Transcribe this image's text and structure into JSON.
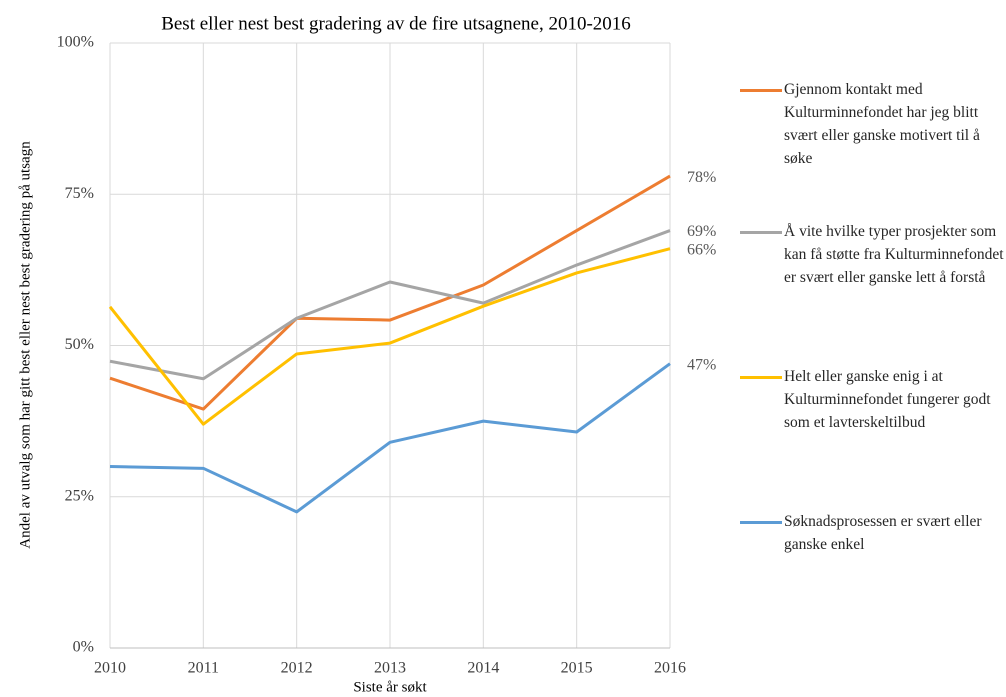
{
  "chart_data": {
    "type": "line",
    "title": "Best eller nest best gradering av de fire utsagnene, 2010-2016",
    "xlabel": "Siste år søkt",
    "ylabel": "Andel av utvalg som har gitt best eller nest best gradering på utsagn",
    "categories": [
      "2010",
      "2011",
      "2012",
      "2013",
      "2014",
      "2015",
      "2016"
    ],
    "ylim": [
      0,
      100
    ],
    "yticks": [
      {
        "value": 0,
        "label": "0%"
      },
      {
        "value": 25,
        "label": "25%"
      },
      {
        "value": 50,
        "label": "50%"
      },
      {
        "value": 75,
        "label": "75%"
      },
      {
        "value": 100,
        "label": "100%"
      }
    ],
    "grid": true,
    "legend": "right",
    "series": [
      {
        "name": "Gjennom kontakt med Kulturminnefondet har jeg blitt svært eller ganske motivert til å søke",
        "color": "#ed7d31",
        "values": [
          44.6,
          39.5,
          54.5,
          54.2,
          60,
          69,
          78
        ],
        "value_labels": [
          null,
          null,
          null,
          null,
          null,
          null,
          "78%"
        ]
      },
      {
        "name": "Å vite hvilke typer prosjekter som kan få støtte fra Kulturminnefondet er svært eller ganske lett å forstå",
        "color": "#a5a5a5",
        "values": [
          47.4,
          44.5,
          54.5,
          60.5,
          57,
          63.3,
          69
        ],
        "value_labels": [
          null,
          null,
          null,
          null,
          null,
          null,
          "69%"
        ]
      },
      {
        "name": "Helt eller ganske enig i at Kulturminnefondet fungerer godt som et lavterskeltilbud",
        "color": "#ffc000",
        "values": [
          56.4,
          37,
          48.6,
          50.4,
          56.5,
          62,
          66
        ],
        "value_labels": [
          null,
          null,
          null,
          null,
          null,
          null,
          "66%"
        ]
      },
      {
        "name": "Søknadsprosessen er svært eller ganske enkel",
        "color": "#5b9bd5",
        "values": [
          30,
          29.7,
          22.5,
          34,
          37.5,
          35.7,
          47
        ],
        "value_labels": [
          null,
          null,
          null,
          null,
          null,
          null,
          "47%"
        ]
      }
    ]
  }
}
